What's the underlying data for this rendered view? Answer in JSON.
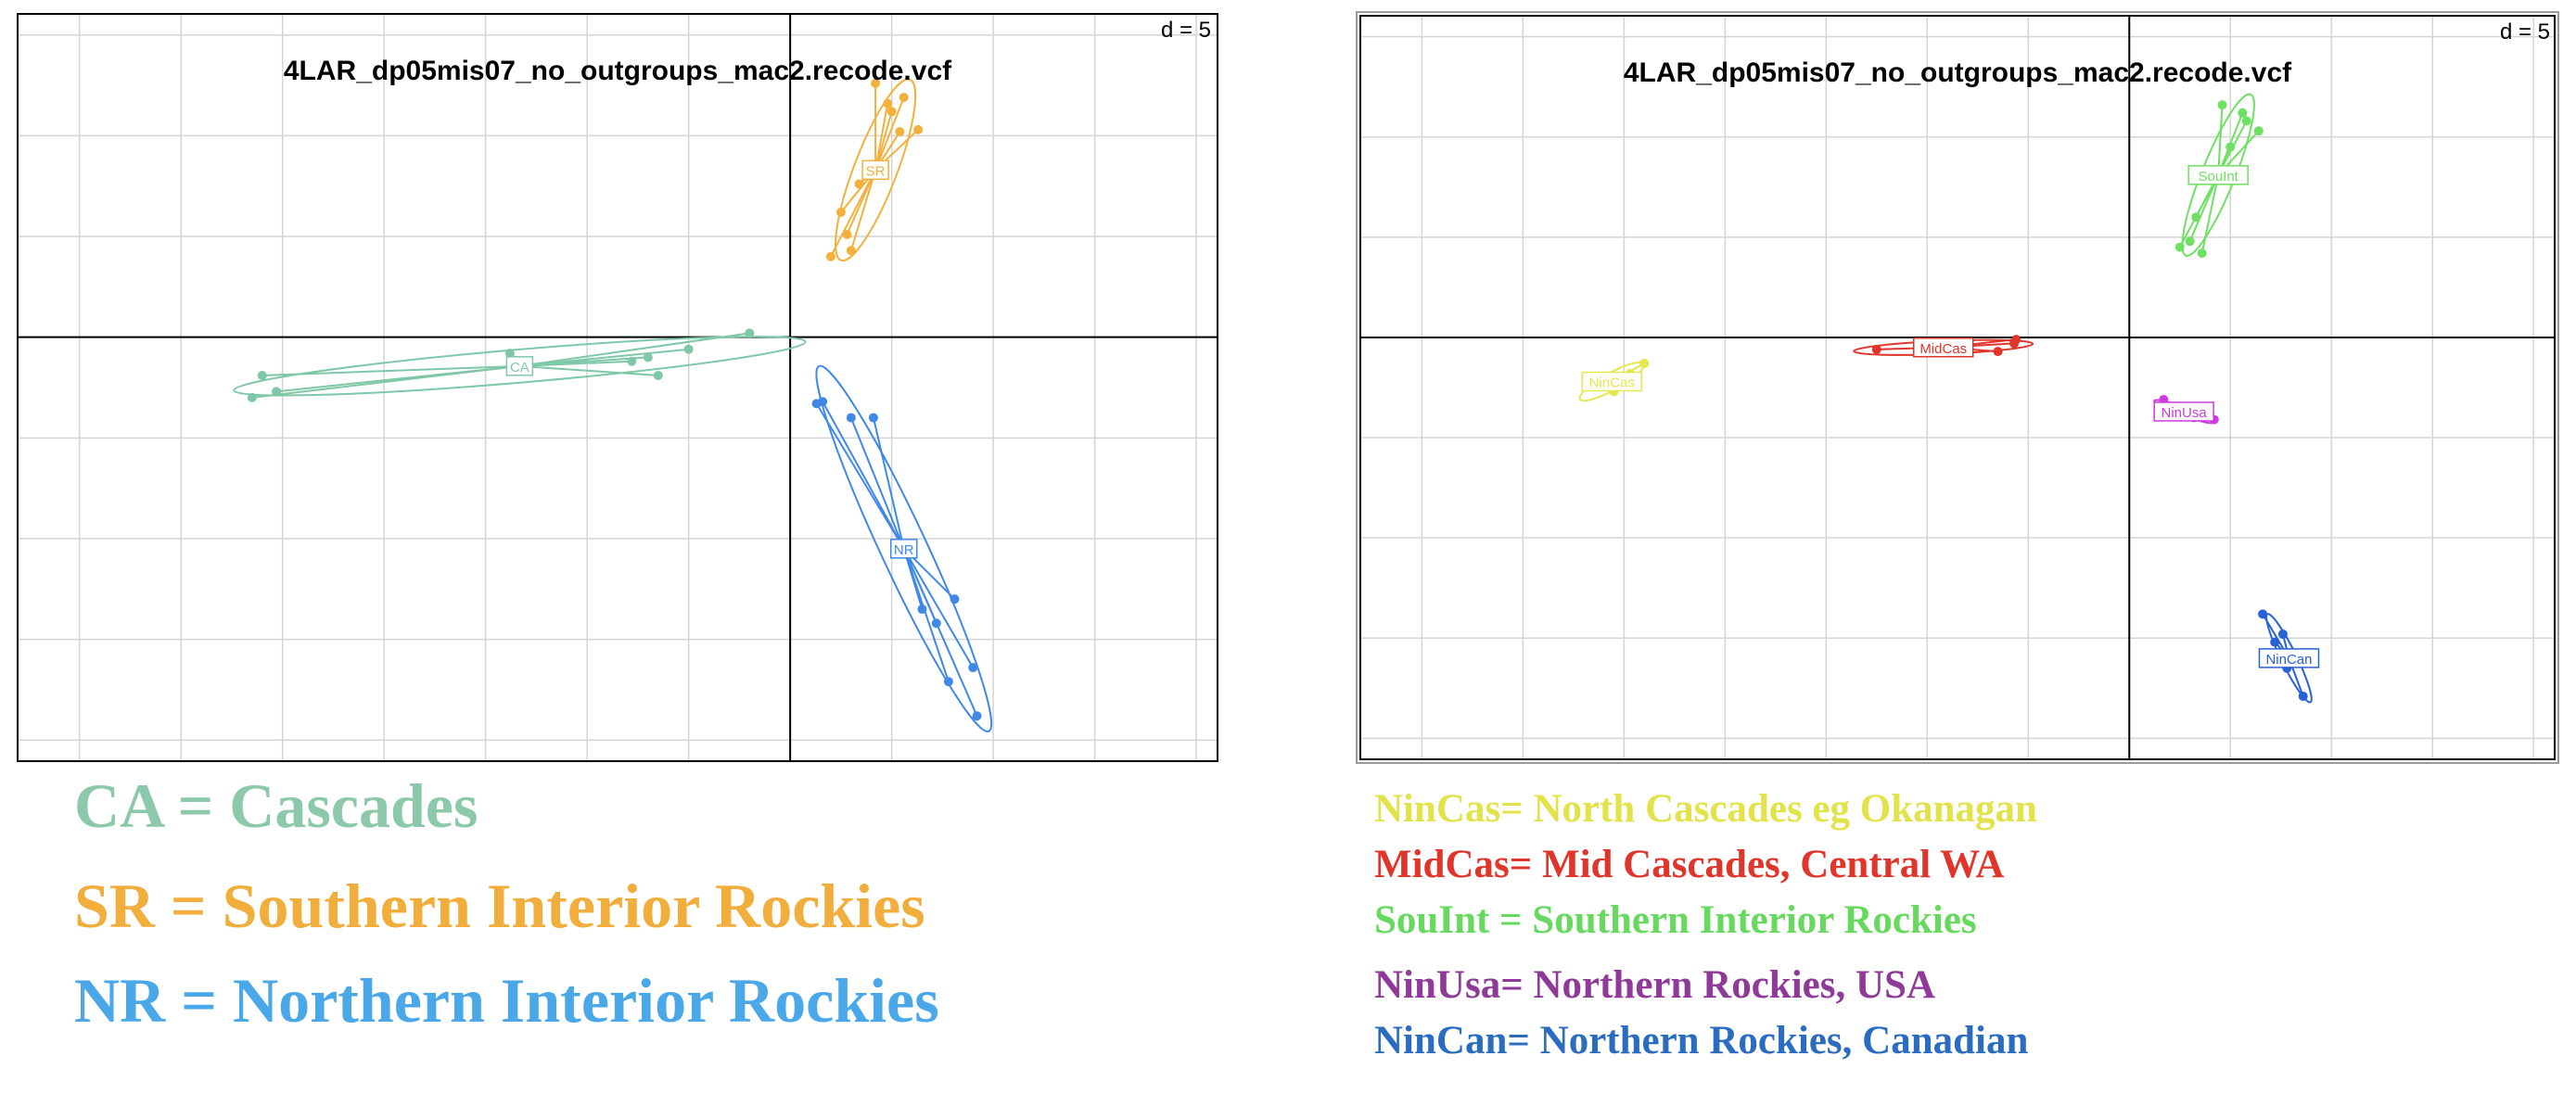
{
  "chart_data": [
    {
      "type": "scatter",
      "title": "4LAR_dp05mis07_no_outgroups_mac2.recode.vcf",
      "grid_label": "d = 5",
      "xlim": [
        -38,
        21
      ],
      "ylim": [
        -21,
        16
      ],
      "grid": true,
      "legend": "below-left",
      "series": [
        {
          "name": "CA",
          "label": "CA",
          "color": "#7ec8a8",
          "x": [
            -26,
            -26.5,
            -25.3,
            -13.8,
            -7,
            -5,
            -6.5,
            -7.8,
            -2
          ],
          "y": [
            -1.9,
            -3,
            -2.7,
            -0.8,
            -1,
            -0.6,
            -1.9,
            -1.2,
            0.2
          ]
        },
        {
          "name": "SR",
          "label": "SR",
          "color": "#f2b13c",
          "x": [
            2,
            3,
            2.5,
            4.8,
            4,
            5.4,
            6.3,
            4.2,
            2.8,
            3.4,
            5,
            5.6
          ],
          "y": [
            4,
            4.3,
            6.2,
            11.6,
            8.4,
            10.2,
            10.3,
            12.6,
            5.1,
            7.6,
            11.2,
            11.9
          ],
          "cx": 4.2,
          "cy": 8.3
        },
        {
          "name": "NR",
          "label": "NR",
          "color": "#3f88e6",
          "x": [
            1.6,
            1.3,
            3,
            4.1,
            6.5,
            9,
            7.8,
            8.1,
            7.2,
            9.2
          ],
          "y": [
            -3.2,
            -3.3,
            -4,
            -4,
            -13.5,
            -16.4,
            -17.1,
            -13,
            -14.2,
            -18.8
          ],
          "cx": 5.6,
          "cy": -10.5
        }
      ]
    },
    {
      "type": "scatter",
      "title": "4LAR_dp05mis07_no_outgroups_mac2.recode.vcf",
      "grid_label": "d = 5",
      "xlim": [
        -38,
        21
      ],
      "ylim": [
        -21,
        16
      ],
      "grid": true,
      "legend": "below-right",
      "series": [
        {
          "name": "NinCas",
          "label": "NinCas",
          "color": "#e6e64e",
          "x": [
            -25.5,
            -24.7,
            -24
          ],
          "y": [
            -2.7,
            -1.8,
            -1.3
          ],
          "cx": -25.6,
          "cy": -2.2
        },
        {
          "name": "MidCas",
          "label": "MidCas",
          "color": "#e0352b",
          "x": [
            -12.5,
            -8.7,
            -6.5,
            -5.7,
            -5.6
          ],
          "y": [
            -0.6,
            -0.75,
            -0.7,
            -0.3,
            -0.1
          ],
          "cx": -9.2,
          "cy": -0.5
        },
        {
          "name": "SouInt",
          "label": "SouInt",
          "color": "#6ee062",
          "x": [
            2.5,
            3,
            3.6,
            4.6,
            5.6,
            6.4,
            4,
            5,
            5.8,
            3.3,
            4.6
          ],
          "y": [
            4.5,
            4.8,
            4.2,
            11.6,
            11.2,
            10.3,
            8.1,
            9.5,
            10.8,
            6,
            8.3
          ],
          "cx": 4.4,
          "cy": 8.1
        },
        {
          "name": "NinUsa",
          "label": "NinUsa",
          "color": "#cc3bdd",
          "x": [
            1.7,
            1.9,
            3.2,
            4.2,
            3.5
          ],
          "y": [
            -3.1,
            -3.4,
            -4,
            -4.1,
            -3.9
          ],
          "cx": 2.7,
          "cy": -3.7
        },
        {
          "name": "NinCan",
          "label": "NinCan",
          "color": "#2860d8",
          "x": [
            6.6,
            7.6,
            7.8,
            8.6,
            7.2
          ],
          "y": [
            -13.8,
            -14.8,
            -16.5,
            -17.9,
            -15.2
          ],
          "cx": 7.9,
          "cy": -16
        }
      ]
    }
  ],
  "legend_left": [
    {
      "text": "CA = Cascades",
      "color": "#8cc9aa"
    },
    {
      "text": "SR = Southern Interior Rockies",
      "color": "#f2ae3d"
    },
    {
      "text": "NR = Northern Interior Rockies",
      "color": "#4aa8e8"
    }
  ],
  "legend_right": [
    {
      "text": "NinCas= North Cascades eg Okanagan",
      "color": "#e2e24a"
    },
    {
      "text": "MidCas= Mid Cascades, Central WA",
      "color": "#e0352b"
    },
    {
      "text": "SouInt = Southern Interior Rockies",
      "color": "#66d95e"
    },
    {
      "text": "NinUsa= Northern Rockies, USA",
      "color": "#8f3a98"
    },
    {
      "text": "NinCan= Northern Rockies, Canadian",
      "color": "#2a6cc0"
    }
  ]
}
